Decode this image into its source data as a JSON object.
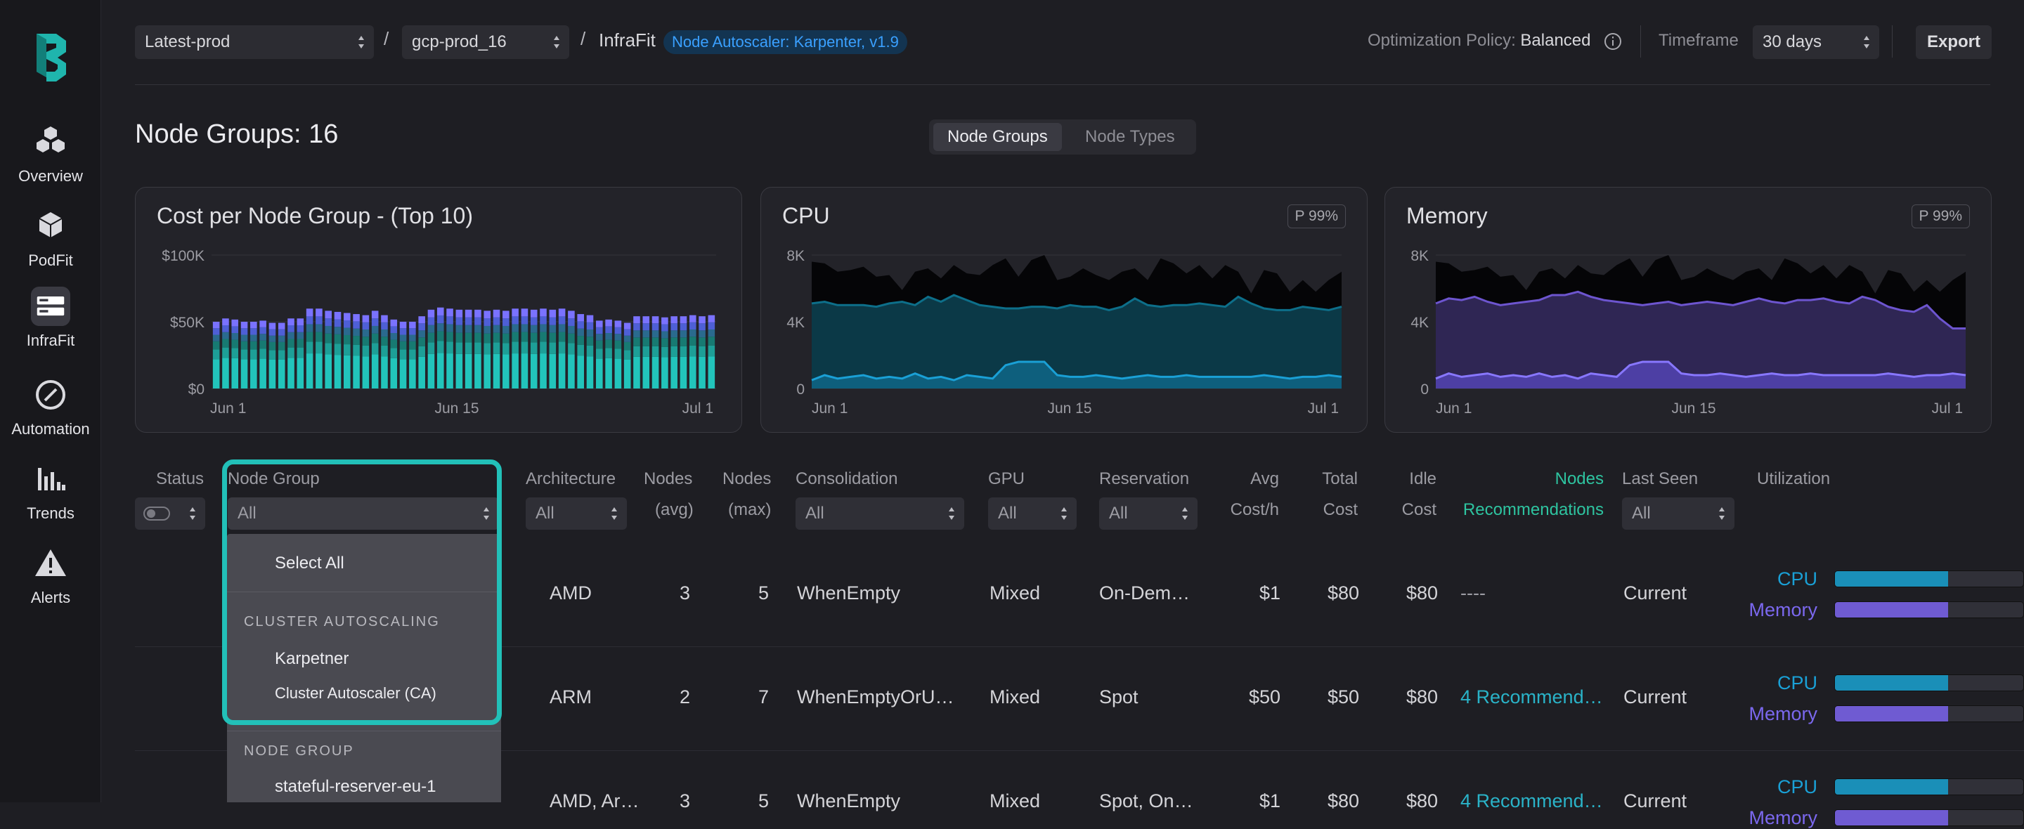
{
  "sidebar": {
    "items": [
      {
        "label": "Overview",
        "icon": "cubes-icon"
      },
      {
        "label": "PodFit",
        "icon": "cube-icon"
      },
      {
        "label": "InfraFit",
        "icon": "server-icon"
      },
      {
        "label": "Automation",
        "icon": "compass-icon"
      },
      {
        "label": "Trends",
        "icon": "bar-chart-icon"
      },
      {
        "label": "Alerts",
        "icon": "warning-icon"
      }
    ]
  },
  "topbar": {
    "env": "Latest-prod",
    "cluster": "gcp-prod_16",
    "separator": "/",
    "crumb": "InfraFit",
    "badge": "Node Autoscaler: Karpenter, v1.9",
    "policy_label": "Optimization Policy:",
    "policy_value": "Balanced",
    "timeframe_label": "Timeframe",
    "timeframe_value": "30 days",
    "export_label": "Export"
  },
  "page": {
    "title": "Node Groups: 16",
    "tabs": [
      "Node Groups",
      "Node Types"
    ]
  },
  "charts": {
    "cost": {
      "title": "Cost per Node Group - (Top 10)"
    },
    "cpu": {
      "title": "CPU",
      "badge": "P 99%"
    },
    "memory": {
      "title": "Memory",
      "badge": "P 99%"
    }
  },
  "chart_data": [
    {
      "type": "bar",
      "title": "Cost per Node Group - (Top 10)",
      "y_ticks": [
        "$100K",
        "$50K",
        "$0"
      ],
      "x_ticks": [
        "Jun 1",
        "Jun 15",
        "Jul 1"
      ],
      "ylim": [
        0,
        100
      ],
      "colors": [
        "#22c4bb",
        "#1d9f97",
        "#177a72",
        "#2a6a8e",
        "#4e5fd6",
        "#7a72ff"
      ],
      "stacks_rel": [
        0.36,
        0.12,
        0.1,
        0.08,
        0.08,
        0.08
      ],
      "totals": [
        61,
        64,
        63,
        61,
        61,
        62,
        60,
        60,
        64,
        64,
        73,
        73,
        71,
        70,
        69,
        68,
        67,
        71,
        67,
        63,
        61,
        61,
        66,
        72,
        74,
        73,
        72,
        72,
        72,
        71,
        72,
        71,
        73,
        73,
        72,
        73,
        72,
        73,
        71,
        68,
        67,
        62,
        63,
        62,
        60,
        66,
        66,
        66,
        65,
        66,
        66,
        67,
        66,
        67
      ]
    },
    {
      "type": "area",
      "title": "CPU",
      "y_ticks": [
        "8K",
        "4K",
        "0"
      ],
      "x_ticks": [
        "Jun 1",
        "Jun 15",
        "Jul 1"
      ],
      "ylim": [
        0,
        8000
      ],
      "series": [
        {
          "values": [
            7600,
            7500,
            7000,
            7100,
            7300,
            6700,
            6800,
            5900,
            7000,
            7200,
            6600,
            7400,
            6900,
            6800,
            7400,
            7800,
            6700,
            7700,
            8000,
            6500,
            6700,
            7200,
            6800,
            6500,
            7000,
            7200,
            6500,
            7800,
            7500,
            6900,
            7400,
            6600,
            7400,
            7000,
            5700,
            7100,
            6900,
            5800,
            6500,
            5800,
            6500,
            7000
          ]
        },
        {
          "values": [
            5100,
            5200,
            5000,
            5000,
            5000,
            4900,
            5100,
            5200,
            5000,
            5500,
            5200,
            5600,
            5300,
            5000,
            4900,
            4800,
            4800,
            4900,
            4900,
            4800,
            5000,
            4900,
            4900,
            4700,
            4900,
            5400,
            5000,
            4900,
            5000,
            5000,
            5100,
            5000,
            4900,
            5500,
            5100,
            4800,
            4700,
            4700,
            4900,
            4800,
            4700,
            4900
          ]
        },
        {
          "values": [
            500,
            800,
            600,
            700,
            800,
            600,
            700,
            600,
            900,
            600,
            700,
            500,
            800,
            700,
            600,
            1400,
            1600,
            1600,
            1600,
            800,
            700,
            700,
            800,
            700,
            600,
            700,
            800,
            700,
            700,
            800,
            700,
            700,
            700,
            700,
            700,
            800,
            700,
            600,
            700,
            700,
            800,
            700
          ]
        }
      ]
    },
    {
      "type": "area",
      "title": "Memory",
      "y_ticks": [
        "8K",
        "4K",
        "0"
      ],
      "x_ticks": [
        "Jun 1",
        "Jun 15",
        "Jul 1"
      ],
      "ylim": [
        0,
        8000
      ],
      "series": [
        {
          "values": [
            7600,
            7500,
            7000,
            7100,
            7300,
            6700,
            6800,
            5900,
            7000,
            7200,
            6600,
            7400,
            6900,
            6800,
            7400,
            7800,
            6700,
            7700,
            8000,
            6500,
            6700,
            7200,
            6800,
            6500,
            7000,
            7200,
            6500,
            7800,
            7500,
            6900,
            7400,
            6600,
            7400,
            7000,
            5700,
            7100,
            6900,
            5800,
            6500,
            5800,
            6500,
            7000
          ]
        },
        {
          "values": [
            5100,
            5400,
            5300,
            5500,
            5200,
            5000,
            5100,
            5200,
            5300,
            5600,
            5600,
            5800,
            5500,
            5300,
            5200,
            5100,
            5000,
            5100,
            5200,
            5000,
            5100,
            5200,
            5100,
            5000,
            5200,
            5400,
            5200,
            5100,
            5300,
            5300,
            5400,
            5200,
            5100,
            5500,
            5300,
            4900,
            4700,
            4600,
            5000,
            4200,
            3600,
            3600
          ]
        },
        {
          "values": [
            600,
            900,
            700,
            800,
            900,
            700,
            800,
            700,
            900,
            700,
            800,
            600,
            900,
            800,
            700,
            1400,
            1600,
            1600,
            1600,
            900,
            800,
            800,
            900,
            800,
            700,
            800,
            900,
            800,
            800,
            900,
            800,
            800,
            800,
            800,
            800,
            900,
            800,
            700,
            800,
            800,
            900,
            800
          ]
        }
      ]
    }
  ],
  "table": {
    "headers": {
      "status": "Status",
      "node_group": "Node Group",
      "architecture": "Architecture",
      "nodes_avg": [
        "Nodes",
        "(avg)"
      ],
      "nodes_max": [
        "Nodes",
        "(max)"
      ],
      "consolidation": "Consolidation",
      "gpu": "GPU",
      "reservation": "Reservation",
      "avg_cost": [
        "Avg",
        "Cost/h"
      ],
      "total_cost": [
        "Total",
        "Cost"
      ],
      "idle_cost": [
        "Idle",
        "Cost"
      ],
      "recommendations": [
        "Nodes",
        "Recommendations"
      ],
      "last_seen": "Last Seen",
      "utilization": "Utilization"
    },
    "filters": {
      "all": "All"
    },
    "rows": [
      {
        "arch": "AMD",
        "avg": "3",
        "max": "5",
        "consolidation": "WhenEmpty",
        "gpu": "Mixed",
        "reservation": "On-Dem…",
        "avg_cost": "$1",
        "total": "$80",
        "idle": "$80",
        "rec": "----",
        "last_seen": "Current",
        "cpu_util": 0.6,
        "mem_util": 0.6
      },
      {
        "arch": "ARM",
        "avg": "2",
        "max": "7",
        "consolidation": "WhenEmptyOrU…",
        "gpu": "Mixed",
        "reservation": "Spot",
        "avg_cost": "$50",
        "total": "$50",
        "idle": "$80",
        "rec": "4 Recommend…",
        "last_seen": "Current",
        "cpu_util": 0.6,
        "mem_util": 0.6
      },
      {
        "arch": "AMD, Ar…",
        "avg": "3",
        "max": "5",
        "consolidation": "WhenEmpty",
        "gpu": "Mixed",
        "reservation": "Spot, On…",
        "avg_cost": "$1",
        "total": "$80",
        "idle": "$80",
        "rec": "4 Recommend…",
        "last_seen": "Current",
        "cpu_util": 0.6,
        "mem_util": 0.6
      }
    ],
    "util_labels": {
      "cpu": "CPU",
      "memory": "Memory"
    }
  },
  "dropdown": {
    "select_all": "Select All",
    "groups": [
      {
        "title": "CLUSTER AUTOSCALING",
        "items": [
          "Karpetner",
          "Cluster Autoscaler (CA)"
        ]
      },
      {
        "title": "NODE GROUP",
        "items": [
          "stateful-reserver-eu-1"
        ]
      }
    ]
  },
  "colors": {
    "accent": "#22c0b8",
    "cpu": "#1aa0d6",
    "memory": "#7b68ee",
    "link": "#2ab3c8",
    "green": "#2ec4a0"
  }
}
